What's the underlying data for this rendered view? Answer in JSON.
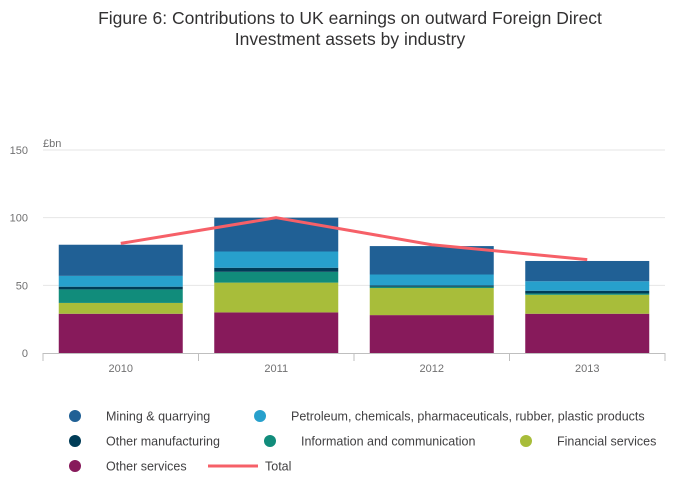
{
  "chart_data": {
    "type": "bar",
    "stacked": true,
    "title_lines": [
      "Figure 6: Contributions to UK earnings on outward Foreign Direct",
      "Investment assets by industry"
    ],
    "ylabel": "£bn",
    "ylim": [
      0,
      150
    ],
    "yticks": [
      0,
      50,
      100,
      150
    ],
    "grid": true,
    "categories": [
      "2010",
      "2011",
      "2012",
      "2013"
    ],
    "series": [
      {
        "name": "Other services",
        "color": "#871a5b",
        "values": [
          29,
          30,
          28,
          29
        ]
      },
      {
        "name": "Financial services",
        "color": "#a8bd3a",
        "values": [
          8,
          22,
          20,
          14
        ]
      },
      {
        "name": "Information and communication",
        "color": "#118c7b",
        "values": [
          10,
          8,
          1,
          1
        ]
      },
      {
        "name": "Other manufacturing",
        "color": "#003c57",
        "values": [
          2,
          3,
          1,
          2
        ]
      },
      {
        "name": "Petroleum, chemicals, pharmaceuticals, rubber, plastic products",
        "color": "#27a0cc",
        "values": [
          8,
          12,
          8,
          7
        ]
      },
      {
        "name": "Mining & quarrying",
        "color": "#206095",
        "values": [
          23,
          25,
          21,
          15
        ]
      }
    ],
    "line_series": {
      "name": "Total",
      "color": "#f66068",
      "values": [
        81,
        100,
        80,
        69
      ]
    },
    "legend": [
      {
        "label": "Mining & quarrying",
        "color": "#206095",
        "symbol": "dot"
      },
      {
        "label": "Petroleum, chemicals, pharmaceuticals, rubber, plastic products",
        "color": "#27a0cc",
        "symbol": "dot"
      },
      {
        "label": "Other manufacturing",
        "color": "#003c57",
        "symbol": "dot"
      },
      {
        "label": "Information and communication",
        "color": "#118c7b",
        "symbol": "dot"
      },
      {
        "label": "Financial services",
        "color": "#a8bd3a",
        "symbol": "dot"
      },
      {
        "label": "Other services",
        "color": "#871a5b",
        "symbol": "dot"
      },
      {
        "label": "Total",
        "color": "#f66068",
        "symbol": "line"
      }
    ],
    "legend_position": "bottom"
  }
}
